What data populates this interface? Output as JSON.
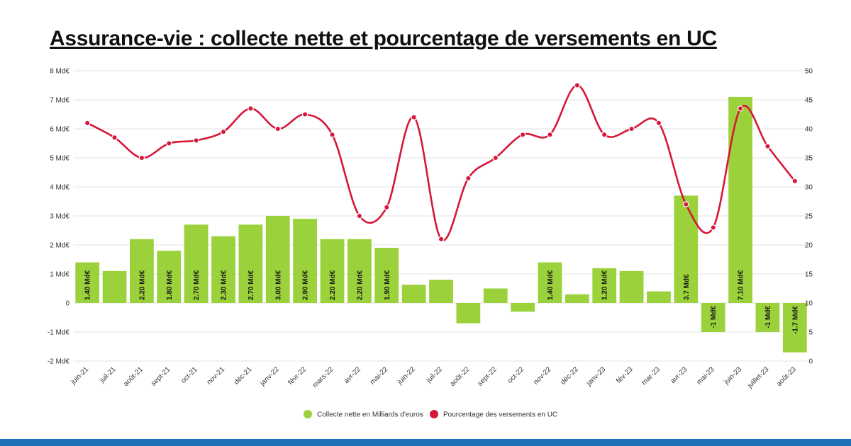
{
  "title": "Assurance-vie : collecte nette et pourcentage de versements en UC",
  "colors": {
    "bar": "#9bd13a",
    "line": "#d7163a",
    "grid": "#e3e3e3",
    "footer": "#1f72b8"
  },
  "chart_data": {
    "type": "bar",
    "categories": [
      "juin-21",
      "juil-21",
      "août-21",
      "sept-21",
      "oct-21",
      "nov-21",
      "déc-21",
      "janv-22",
      "févr-22",
      "mars-22",
      "avr-22",
      "mai-22",
      "juin-22",
      "juil-22",
      "août-22",
      "sept-22",
      "oct-22",
      "nov-22",
      "déc-22",
      "janv-23",
      "fév-23",
      "mar-23",
      "avr-23",
      "mai-23",
      "juin-23",
      "juillet-23",
      "août-23"
    ],
    "series": [
      {
        "name": "Collecte nette en Milliards d'euros",
        "type": "bar",
        "axis": "left",
        "values": [
          1.4,
          1.1,
          2.2,
          1.8,
          2.7,
          2.3,
          2.7,
          3.0,
          2.9,
          2.2,
          2.2,
          1.9,
          0.63,
          0.8,
          -0.7,
          0.5,
          -0.3,
          1.4,
          0.3,
          1.2,
          1.1,
          0.4,
          3.7,
          -1,
          7.1,
          -1,
          -1.7
        ],
        "data_labels": [
          "1.40 Md€",
          "",
          "2.20 Md€",
          "1.80 Md€",
          "2.70 Md€",
          "2.30 Md€",
          "2.70 Md€",
          "3.00 Md€",
          "2.90 Md€",
          "2.20 Md€",
          "2.20 Md€",
          "1.90 Md€",
          "",
          "",
          "",
          "",
          "",
          "1.40 Md€",
          "",
          "1.20 Md€",
          "",
          "",
          "3.7 Md€",
          "-1 Md€",
          "7.10 Md€",
          "-1 Md€",
          "-1.7 Md€"
        ]
      },
      {
        "name": "Pourcentage des versements en UC",
        "type": "line",
        "axis": "right",
        "values": [
          41,
          38.5,
          35,
          37.5,
          38,
          39.5,
          43.5,
          40,
          42.5,
          39,
          25,
          26.5,
          42,
          21,
          31.5,
          35,
          39,
          39,
          47.5,
          39,
          40,
          41,
          27,
          23,
          43.5,
          37,
          31
        ]
      }
    ],
    "y_left": {
      "ylim": [
        -2,
        8
      ],
      "ticks": [
        "-2 Md€",
        "-1 Md€",
        "0",
        "1 Md€",
        "2 Md€",
        "3 Md€",
        "4 Md€",
        "5 Md€",
        "6 Md€",
        "7 Md€",
        "8 Md€"
      ]
    },
    "y_right": {
      "ylim": [
        0,
        50
      ],
      "ticks": [
        "0",
        "5",
        "10",
        "15",
        "20",
        "25",
        "30",
        "35",
        "40",
        "45",
        "50"
      ]
    },
    "grid": true,
    "legend": "bottom-center"
  }
}
